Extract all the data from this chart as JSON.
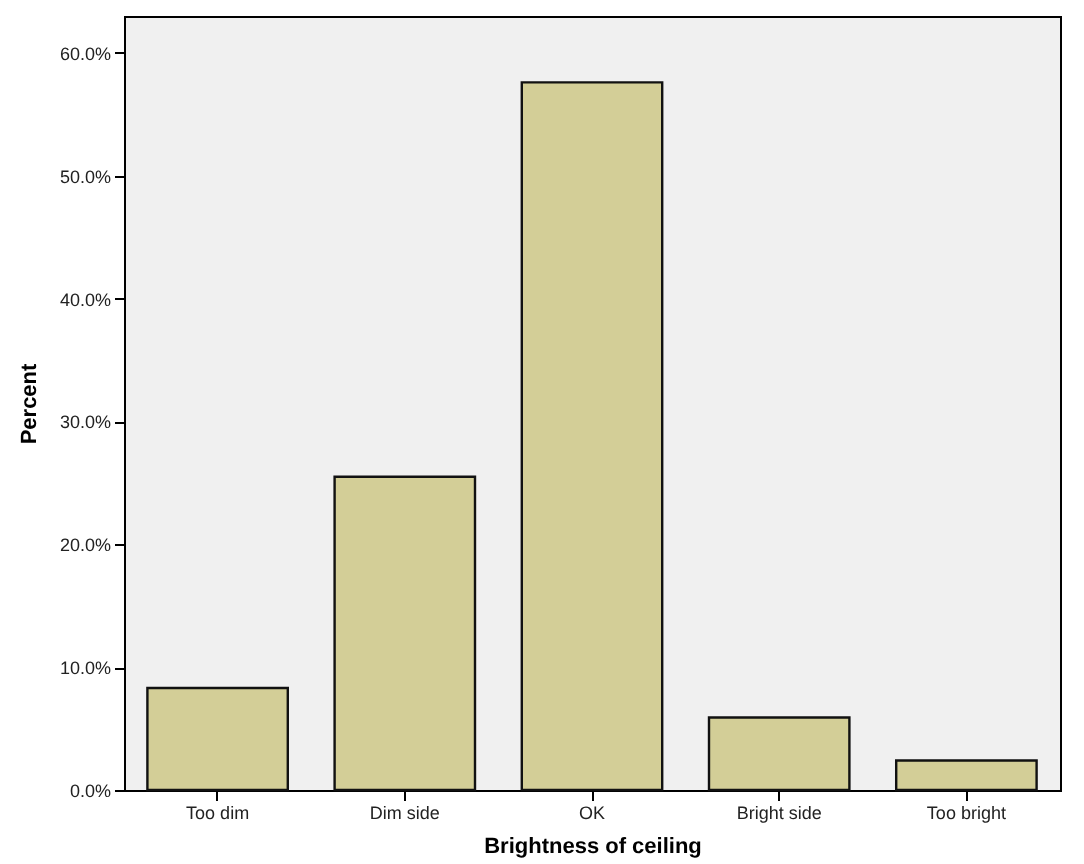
{
  "chart_data": {
    "type": "bar",
    "xlabel": "Brightness of ceiling",
    "ylabel": "Percent",
    "categories": [
      "Too dim",
      "Dim side",
      "OK",
      "Bright side",
      "Too bright"
    ],
    "values": [
      8.3,
      25.5,
      57.6,
      5.9,
      2.4
    ],
    "color": "#d3ce97",
    "ylim": [
      0,
      63
    ],
    "yticks": [
      {
        "value": 0,
        "label": "0.0%"
      },
      {
        "value": 10,
        "label": "10.0%"
      },
      {
        "value": 20,
        "label": "20.0%"
      },
      {
        "value": 30,
        "label": "30.0%"
      },
      {
        "value": 40,
        "label": "40.0%"
      },
      {
        "value": 50,
        "label": "50.0%"
      },
      {
        "value": 60,
        "label": "60.0%"
      }
    ],
    "grid": false
  }
}
